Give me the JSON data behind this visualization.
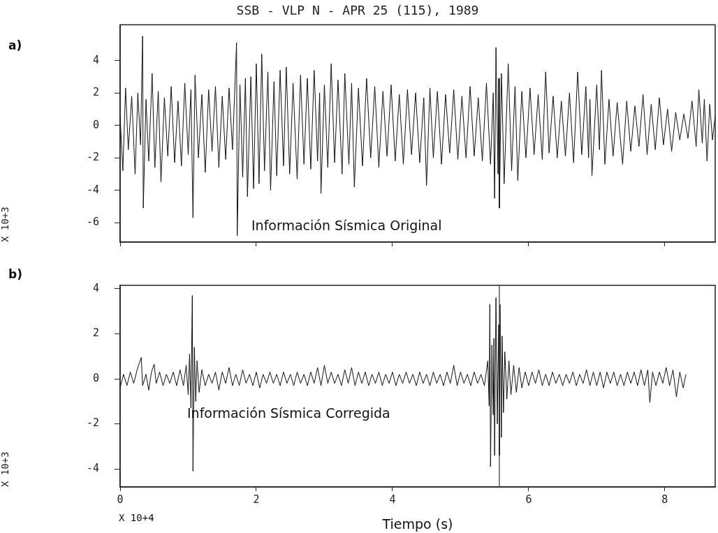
{
  "chart_data": [
    {
      "type": "line",
      "title": "SSB - VLP N - APR 25 (115), 1989",
      "ylabel": "X 10+3",
      "color": "#111111",
      "marker": "none",
      "line_style": "solid",
      "tick_labels": "y",
      "xlim": [
        0,
        8.74
      ],
      "xticks": [
        0,
        2,
        4,
        6,
        8
      ],
      "ylim": [
        -7.2,
        6.2
      ],
      "yticks": [
        -6,
        -4,
        -2,
        0,
        2,
        4
      ],
      "annotations": [
        "a)",
        "Información Sísmica Original"
      ],
      "x": [
        0,
        0.04,
        0.08,
        0.12,
        0.17,
        0.22,
        0.26,
        0.3,
        0.33,
        0.34,
        0.38,
        0.42,
        0.47,
        0.51,
        0.56,
        0.6,
        0.65,
        0.7,
        0.75,
        0.8,
        0.85,
        0.9,
        0.95,
        1.0,
        1.04,
        1.07,
        1.1,
        1.15,
        1.2,
        1.25,
        1.3,
        1.35,
        1.4,
        1.45,
        1.5,
        1.55,
        1.6,
        1.65,
        1.71,
        1.72,
        1.76,
        1.8,
        1.84,
        1.87,
        1.92,
        1.96,
        2.0,
        2.04,
        2.08,
        2.12,
        2.17,
        2.21,
        2.26,
        2.3,
        2.35,
        2.4,
        2.44,
        2.49,
        2.54,
        2.6,
        2.65,
        2.7,
        2.75,
        2.8,
        2.85,
        2.9,
        2.93,
        2.95,
        3.0,
        3.05,
        3.1,
        3.15,
        3.2,
        3.26,
        3.3,
        3.36,
        3.4,
        3.44,
        3.5,
        3.56,
        3.62,
        3.68,
        3.74,
        3.8,
        3.86,
        3.92,
        3.98,
        4.04,
        4.1,
        4.16,
        4.22,
        4.28,
        4.34,
        4.4,
        4.46,
        4.5,
        4.55,
        4.6,
        4.66,
        4.72,
        4.78,
        4.84,
        4.9,
        4.96,
        5.02,
        5.08,
        5.14,
        5.2,
        5.26,
        5.32,
        5.38,
        5.44,
        5.48,
        5.5,
        5.52,
        5.55,
        5.56,
        5.57,
        5.6,
        5.64,
        5.7,
        5.75,
        5.8,
        5.84,
        5.9,
        5.96,
        6.02,
        6.08,
        6.14,
        6.2,
        6.25,
        6.3,
        6.36,
        6.42,
        6.48,
        6.54,
        6.6,
        6.66,
        6.72,
        6.78,
        6.84,
        6.88,
        6.9,
        6.93,
        7.0,
        7.04,
        7.07,
        7.12,
        7.18,
        7.24,
        7.3,
        7.38,
        7.44,
        7.5,
        7.56,
        7.62,
        7.68,
        7.74,
        7.8,
        7.86,
        7.92,
        7.98,
        8.04,
        8.1,
        8.16,
        8.22,
        8.28,
        8.34,
        8.4,
        8.46,
        8.5,
        8.55,
        8.58,
        8.62,
        8.66,
        8.7,
        8.74
      ],
      "values": [
        0.5,
        -2.8,
        2.3,
        -1.5,
        1.8,
        -3.0,
        2.0,
        -1.2,
        5.5,
        -5.1,
        1.6,
        -2.2,
        3.2,
        -2.6,
        2.1,
        -3.5,
        1.7,
        -1.9,
        2.4,
        -2.3,
        1.5,
        -2.5,
        2.6,
        -1.8,
        2.2,
        -5.7,
        3.1,
        -2.0,
        1.9,
        -2.9,
        2.2,
        -1.6,
        2.4,
        -2.6,
        1.8,
        -2.1,
        2.3,
        -1.5,
        5.1,
        -6.8,
        2.5,
        -3.2,
        2.9,
        -4.4,
        3.0,
        -3.9,
        3.8,
        -3.6,
        4.4,
        -2.8,
        3.3,
        -4.0,
        2.7,
        -3.1,
        3.4,
        -2.5,
        3.6,
        -3.0,
        2.6,
        -3.3,
        3.1,
        -2.4,
        2.9,
        -2.7,
        3.4,
        -2.2,
        2.0,
        -4.2,
        2.5,
        -2.6,
        3.8,
        -2.3,
        2.8,
        -3.0,
        3.2,
        -2.4,
        2.6,
        -3.8,
        2.3,
        -2.5,
        2.9,
        -2.0,
        2.4,
        -2.6,
        2.1,
        -1.9,
        2.5,
        -2.2,
        1.9,
        -2.4,
        2.2,
        -1.8,
        2.0,
        -2.3,
        1.7,
        -3.7,
        2.3,
        -2.0,
        2.1,
        -2.4,
        1.9,
        -1.7,
        2.2,
        -2.1,
        1.8,
        -2.0,
        2.4,
        -1.9,
        1.7,
        -2.2,
        2.6,
        -2.4,
        2.0,
        -4.5,
        4.8,
        -3.0,
        2.9,
        -5.1,
        3.2,
        -3.6,
        3.8,
        -2.8,
        2.4,
        -3.4,
        2.1,
        -2.0,
        2.3,
        -1.8,
        1.9,
        -2.1,
        3.3,
        -1.7,
        1.8,
        -2.0,
        1.5,
        -1.9,
        2.0,
        -2.3,
        3.3,
        -1.8,
        2.4,
        -2.0,
        1.6,
        -3.1,
        2.5,
        -1.5,
        3.4,
        -2.4,
        1.6,
        -1.9,
        1.4,
        -2.4,
        1.5,
        -1.6,
        1.2,
        -1.3,
        1.9,
        -1.8,
        1.3,
        -1.5,
        1.7,
        -1.2,
        1.0,
        -1.6,
        0.8,
        -0.9,
        0.7,
        -0.8,
        1.5,
        -1.3,
        2.2,
        -1.1,
        1.6,
        -2.2,
        1.3,
        -0.9,
        0.6
      ]
    },
    {
      "type": "line",
      "xlabel": "Tiempo (s)",
      "ylabel": "X 10+3",
      "color": "#111111",
      "marker": "none",
      "line_style": "solid",
      "xlim": [
        0,
        8.74
      ],
      "xticks": [
        0,
        2,
        4,
        6,
        8
      ],
      "ylim": [
        -4.8,
        4.15
      ],
      "yticks": [
        -4,
        -2,
        0,
        2,
        4
      ],
      "ref_lines": [
        {
          "axis": "x",
          "value": 5.57,
          "color": "#333333"
        }
      ],
      "annotations": [
        "b)",
        "Información Sísmica Corregida",
        "X 10+4"
      ],
      "x": [
        0,
        0.05,
        0.1,
        0.15,
        0.2,
        0.25,
        0.31,
        0.33,
        0.38,
        0.42,
        0.46,
        0.5,
        0.53,
        0.58,
        0.63,
        0.68,
        0.73,
        0.78,
        0.83,
        0.88,
        0.93,
        0.97,
        1.0,
        1.02,
        1.04,
        1.06,
        1.07,
        1.09,
        1.11,
        1.13,
        1.16,
        1.2,
        1.25,
        1.3,
        1.35,
        1.4,
        1.45,
        1.5,
        1.55,
        1.6,
        1.65,
        1.7,
        1.75,
        1.8,
        1.85,
        1.9,
        1.95,
        2.0,
        2.05,
        2.1,
        2.15,
        2.2,
        2.25,
        2.3,
        2.35,
        2.4,
        2.45,
        2.5,
        2.55,
        2.6,
        2.65,
        2.7,
        2.75,
        2.8,
        2.85,
        2.9,
        2.95,
        3.0,
        3.05,
        3.1,
        3.15,
        3.2,
        3.25,
        3.3,
        3.35,
        3.4,
        3.45,
        3.5,
        3.55,
        3.6,
        3.65,
        3.7,
        3.75,
        3.8,
        3.85,
        3.9,
        3.95,
        4.0,
        4.05,
        4.1,
        4.15,
        4.2,
        4.25,
        4.3,
        4.35,
        4.4,
        4.45,
        4.5,
        4.55,
        4.6,
        4.65,
        4.7,
        4.75,
        4.8,
        4.85,
        4.9,
        4.95,
        5.0,
        5.05,
        5.1,
        5.15,
        5.2,
        5.25,
        5.3,
        5.35,
        5.4,
        5.42,
        5.43,
        5.44,
        5.46,
        5.48,
        5.49,
        5.5,
        5.52,
        5.54,
        5.56,
        5.57,
        5.58,
        5.6,
        5.61,
        5.63,
        5.65,
        5.68,
        5.71,
        5.74,
        5.78,
        5.82,
        5.86,
        5.9,
        5.95,
        6.0,
        6.05,
        6.1,
        6.15,
        6.2,
        6.25,
        6.3,
        6.35,
        6.4,
        6.45,
        6.5,
        6.55,
        6.6,
        6.65,
        6.7,
        6.75,
        6.8,
        6.85,
        6.9,
        6.95,
        7.0,
        7.05,
        7.1,
        7.15,
        7.2,
        7.25,
        7.3,
        7.35,
        7.4,
        7.45,
        7.5,
        7.55,
        7.6,
        7.65,
        7.7,
        7.75,
        7.78,
        7.82,
        7.87,
        7.92,
        7.97,
        8.02,
        8.07,
        8.12,
        8.17,
        8.22,
        8.27,
        8.31
      ],
      "values": [
        -0.4,
        0.2,
        -0.3,
        0.3,
        -0.2,
        0.4,
        0.95,
        -0.3,
        0.2,
        -0.5,
        0.3,
        0.65,
        -0.2,
        0.3,
        -0.3,
        0.2,
        -0.2,
        0.3,
        -0.3,
        0.4,
        -0.3,
        0.6,
        -0.7,
        1.1,
        -1.3,
        3.7,
        -4.1,
        1.4,
        -1.0,
        0.8,
        -0.6,
        0.4,
        -0.3,
        0.2,
        -0.2,
        0.3,
        -0.5,
        0.3,
        -0.2,
        0.5,
        -0.3,
        0.2,
        -0.3,
        0.4,
        -0.2,
        0.2,
        -0.3,
        0.3,
        -0.4,
        0.2,
        -0.2,
        0.3,
        -0.2,
        0.2,
        -0.3,
        0.3,
        -0.2,
        0.2,
        -0.3,
        0.3,
        -0.2,
        0.2,
        -0.3,
        0.3,
        -0.2,
        0.5,
        -0.3,
        0.6,
        -0.2,
        0.3,
        -0.2,
        0.2,
        -0.3,
        0.4,
        -0.2,
        0.5,
        -0.3,
        0.3,
        -0.2,
        0.3,
        -0.3,
        0.2,
        -0.2,
        0.3,
        -0.3,
        0.2,
        -0.2,
        0.3,
        -0.3,
        0.2,
        -0.2,
        0.3,
        -0.2,
        0.2,
        -0.3,
        0.3,
        -0.2,
        0.2,
        -0.3,
        0.3,
        -0.2,
        0.2,
        -0.3,
        0.3,
        -0.2,
        0.6,
        -0.3,
        0.3,
        -0.2,
        0.2,
        -0.3,
        0.3,
        -0.2,
        0.2,
        -0.3,
        0.8,
        -1.2,
        3.3,
        -3.9,
        1.5,
        -1.6,
        1.8,
        -3.4,
        3.6,
        -2.0,
        2.4,
        -3.4,
        3.3,
        -2.6,
        1.9,
        -1.5,
        1.2,
        -0.9,
        0.8,
        -0.7,
        0.6,
        -0.6,
        0.5,
        -0.4,
        0.3,
        -0.3,
        0.3,
        -0.2,
        0.4,
        -0.3,
        0.2,
        -0.3,
        0.3,
        -0.2,
        0.2,
        -0.3,
        0.2,
        -0.2,
        0.3,
        -0.3,
        0.2,
        -0.2,
        0.4,
        -0.3,
        0.3,
        -0.3,
        0.3,
        -0.4,
        0.3,
        -0.2,
        0.3,
        -0.3,
        0.2,
        -0.3,
        0.3,
        -0.2,
        0.3,
        -0.3,
        0.4,
        -0.3,
        0.4,
        -1.05,
        0.3,
        -0.3,
        0.3,
        -0.2,
        0.5,
        -0.3,
        0.4,
        -0.8,
        0.3,
        -0.4,
        0.2
      ]
    }
  ]
}
